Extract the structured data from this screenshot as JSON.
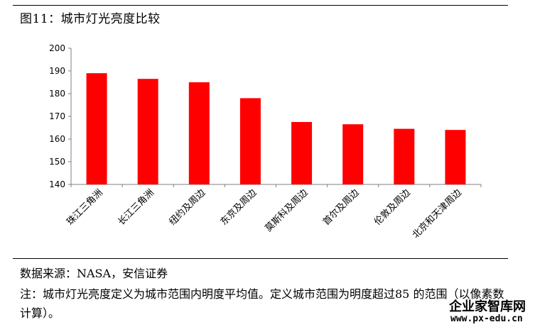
{
  "title": "图11：城市灯光亮度比较",
  "chart_data": {
    "type": "bar",
    "categories": [
      "珠江三角洲",
      "长江三角洲",
      "纽约及周边",
      "东京及周边",
      "莫斯科及周边",
      "首尔及周边",
      "伦敦及周边",
      "北京和天津周边"
    ],
    "values": [
      189,
      186.5,
      185,
      178,
      167.5,
      166.5,
      164.5,
      164
    ],
    "ylim": [
      140,
      200
    ],
    "yticks": [
      140,
      150,
      160,
      170,
      180,
      190,
      200
    ],
    "bar_color": "#ff0000",
    "grid": false,
    "legend": "none"
  },
  "source": "数据来源：NASA，安信证券",
  "note": "注：城市灯光亮度定义为城市范围内明度平均值。定义城市范围为明度超过85 的范围（以像素数计算）。",
  "watermark": {
    "name": "企业家智库网",
    "url": "www.px-edu.cn"
  }
}
